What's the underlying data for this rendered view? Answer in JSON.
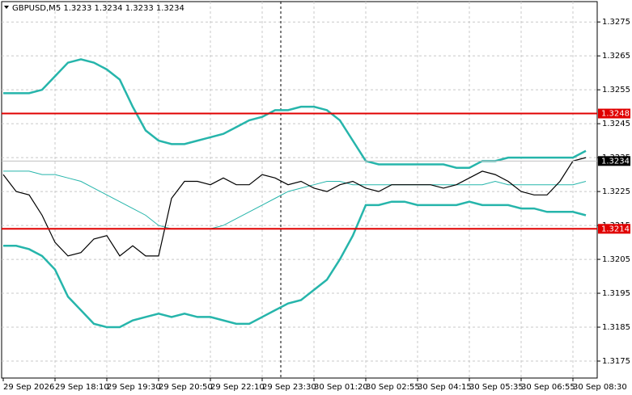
{
  "chart_data": {
    "type": "line",
    "title": "GBPUSD,M5  1.3233 1.3234 1.3233 1.3234",
    "x": [
      "29 Sep 2026",
      null,
      null,
      null,
      "29 Sep 18:10",
      null,
      null,
      null,
      "29 Sep 19:30",
      null,
      null,
      null,
      "29 Sep 20:50",
      null,
      null,
      null,
      "29 Sep 22:10",
      null,
      null,
      null,
      "29 Sep 23:30",
      null,
      null,
      null,
      "30 Sep 01:20",
      null,
      null,
      null,
      "30 Sep 02:55",
      null,
      null,
      null,
      "30 Sep 04:15",
      null,
      null,
      null,
      "30 Sep 05:35",
      null,
      null,
      null,
      "30 Sep 06:55",
      null,
      null,
      null,
      "30 Sep 08:30",
      null
    ],
    "series": [
      {
        "color": "#26b5ab",
        "line_width": 2.5,
        "values": [
          1.3254,
          1.3254,
          1.3254,
          1.3255,
          1.3259,
          1.3263,
          1.3264,
          1.3263,
          1.3261,
          1.3258,
          1.325,
          1.3243,
          1.324,
          1.3239,
          1.3239,
          1.324,
          1.3241,
          1.3242,
          1.3244,
          1.3246,
          1.3247,
          1.3249,
          1.3249,
          1.325,
          1.325,
          1.3249,
          1.3246,
          1.324,
          1.3234,
          1.3233,
          1.3233,
          1.3233,
          1.3233,
          1.3233,
          1.3233,
          1.3232,
          1.3232,
          1.3234,
          1.3234,
          1.3235,
          1.3235,
          1.3235,
          1.3235,
          1.3235,
          1.3235,
          1.3237
        ]
      },
      {
        "color": "#26b5ab",
        "line_width": 1,
        "values": [
          1.3231,
          1.3231,
          1.3231,
          1.323,
          1.323,
          1.3229,
          1.3228,
          1.3226,
          1.3224,
          1.3222,
          1.322,
          1.3218,
          1.3215,
          1.3214,
          1.3214,
          1.3214,
          1.3214,
          1.3215,
          1.3217,
          1.3219,
          1.3221,
          1.3223,
          1.3225,
          1.3226,
          1.3227,
          1.3228,
          1.3228,
          1.3227,
          1.3227,
          1.3227,
          1.3227,
          1.3227,
          1.3227,
          1.3227,
          1.3227,
          1.3227,
          1.3227,
          1.3227,
          1.3228,
          1.3227,
          1.3227,
          1.3227,
          1.3227,
          1.3227,
          1.3227,
          1.3228
        ]
      },
      {
        "color": "#26b5ab",
        "line_width": 2.5,
        "values": [
          1.3209,
          1.3209,
          1.3208,
          1.3206,
          1.3202,
          1.3194,
          1.319,
          1.3186,
          1.3185,
          1.3185,
          1.3187,
          1.3188,
          1.3189,
          1.3188,
          1.3189,
          1.3188,
          1.3188,
          1.3187,
          1.3186,
          1.3186,
          1.3188,
          1.319,
          1.3192,
          1.3193,
          1.3196,
          1.3199,
          1.3205,
          1.3212,
          1.3221,
          1.3221,
          1.3222,
          1.3222,
          1.3221,
          1.3221,
          1.3221,
          1.3221,
          1.3222,
          1.3221,
          1.3221,
          1.3221,
          1.322,
          1.322,
          1.3219,
          1.3219,
          1.3219,
          1.3218
        ]
      },
      {
        "color": "#000000",
        "line_width": 1.2,
        "values": [
          1.323,
          1.3225,
          1.3224,
          1.3218,
          1.321,
          1.3206,
          1.3207,
          1.3211,
          1.3212,
          1.3206,
          1.3209,
          1.3206,
          1.3206,
          1.3223,
          1.3228,
          1.3228,
          1.3227,
          1.3229,
          1.3227,
          1.3227,
          1.323,
          1.3229,
          1.3227,
          1.3228,
          1.3226,
          1.3225,
          1.3227,
          1.3228,
          1.3226,
          1.3225,
          1.3227,
          1.3227,
          1.3227,
          1.3227,
          1.3226,
          1.3227,
          1.3229,
          1.3231,
          1.323,
          1.3228,
          1.3225,
          1.3224,
          1.3224,
          1.3228,
          1.3234,
          1.3235
        ]
      }
    ],
    "ylim": [
      1.317,
      1.3281
    ],
    "yticks": [
      1.3175,
      1.3185,
      1.3195,
      1.3205,
      1.3215,
      1.3225,
      1.3235,
      1.3245,
      1.3255,
      1.3265,
      1.3275
    ],
    "grid": true,
    "levels": [
      {
        "value": 1.3248,
        "color": "#e00000"
      },
      {
        "value": 1.3214,
        "color": "#e00000"
      }
    ],
    "current_price": {
      "value": 1.3234,
      "color": "#000000"
    }
  }
}
